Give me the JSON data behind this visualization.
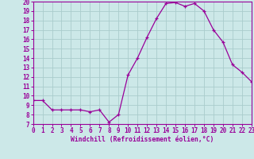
{
  "x": [
    0,
    1,
    2,
    3,
    4,
    5,
    6,
    7,
    8,
    9,
    10,
    11,
    12,
    13,
    14,
    15,
    16,
    17,
    18,
    19,
    20,
    21,
    22,
    23
  ],
  "y": [
    9.5,
    9.5,
    8.5,
    8.5,
    8.5,
    8.5,
    8.3,
    8.5,
    7.2,
    8.0,
    12.2,
    14.0,
    16.2,
    18.2,
    19.8,
    19.9,
    19.5,
    19.8,
    19.0,
    17.0,
    15.7,
    13.3,
    12.5,
    11.5
  ],
  "line_color": "#990099",
  "marker": "+",
  "marker_size": 3,
  "background_color": "#cce8e8",
  "grid_color": "#aacccc",
  "xlabel": "Windchill (Refroidissement éolien,°C)",
  "xlim": [
    0,
    23
  ],
  "ylim": [
    7,
    20
  ],
  "yticks": [
    7,
    8,
    9,
    10,
    11,
    12,
    13,
    14,
    15,
    16,
    17,
    18,
    19,
    20
  ],
  "xticks": [
    0,
    1,
    2,
    3,
    4,
    5,
    6,
    7,
    8,
    9,
    10,
    11,
    12,
    13,
    14,
    15,
    16,
    17,
    18,
    19,
    20,
    21,
    22,
    23
  ],
  "tick_color": "#990099",
  "spine_color": "#990099",
  "label_fontsize": 5.5,
  "xlabel_fontsize": 5.8
}
